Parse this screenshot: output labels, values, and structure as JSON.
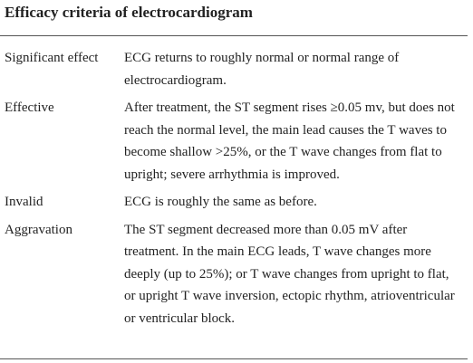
{
  "title": "Efficacy criteria of electrocardiogram",
  "table": {
    "rows": [
      [
        "Significant effect",
        "ECG returns to roughly normal or normal range of electrocardiogram."
      ],
      [
        "Effective",
        "After treatment, the ST segment rises ≥0.05 mv, but does not reach the normal level, the main lead causes the T waves to become shallow >25%, or the T wave changes from flat to upright; severe arrhythmia is improved."
      ],
      [
        "Invalid",
        "ECG is roughly the same as before."
      ],
      [
        "Aggravation",
        "The ST segment decreased more than 0.05 mV after treatment. In the main ECG leads, T wave changes more deeply (up to 25%); or T wave changes from upright to flat, or upright T wave inversion, ectopic rhythm, atrioventricular or ventricular block."
      ]
    ]
  }
}
